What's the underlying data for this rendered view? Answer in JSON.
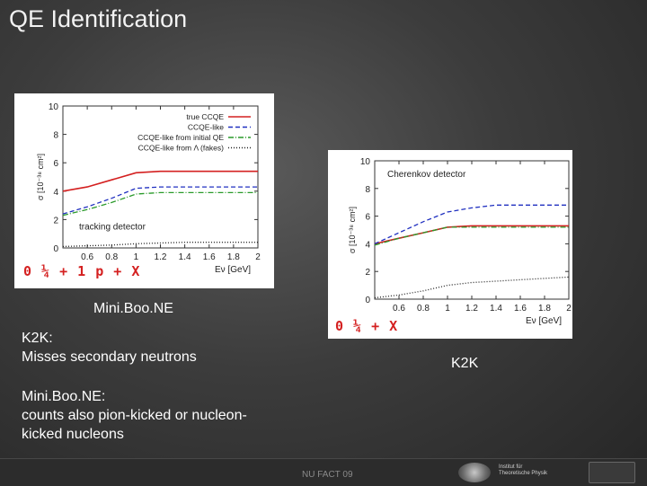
{
  "slide": {
    "title": "QE Identification",
    "label_miniboone": "Mini.Boo.NE",
    "label_k2k": "K2K",
    "text_k2k_header": "K2K:",
    "text_k2k_body": "Misses secondary neutrons",
    "text_mb_header": "Mini.Boo.NE:",
    "text_mb_line1": "counts also pion-kicked  or nucleon-",
    "text_mb_line2": "kicked nucleons",
    "footer": "NU FACT 09",
    "logo_text_line1": "Institut für",
    "logo_text_line2": "Theoretische Physik"
  },
  "left_plot": {
    "overlay": "0 ¼ + 1 p + X",
    "annotation": "tracking detector",
    "ylabel": "σ [10⁻³⁸ cm²]",
    "xlabel": "Eν [GeV]",
    "yticks": [
      "0",
      "2",
      "4",
      "6",
      "8",
      "10"
    ],
    "xticks": [
      "0.6",
      "0.8",
      "1",
      "1.2",
      "1.4",
      "1.6",
      "1.8",
      "2"
    ],
    "legend": [
      "true CCQE",
      "CCQE-like",
      "CCQE-like from initial QE",
      "CCQE-like from Λ (fakes)"
    ]
  },
  "right_plot": {
    "overlay": "0 ¼ + X",
    "annotation": "Cherenkov detector",
    "ylabel": "σ [10⁻³⁸ cm²]",
    "xlabel": "Eν [GeV]",
    "yticks": [
      "0",
      "2",
      "4",
      "6",
      "8",
      "10"
    ],
    "xticks": [
      "0.6",
      "0.8",
      "1",
      "1.2",
      "1.4",
      "1.6",
      "1.8",
      "2"
    ]
  },
  "chart_data": [
    {
      "type": "line",
      "xlim": [
        0.4,
        2.0
      ],
      "ylim": [
        0,
        10
      ],
      "series": [
        {
          "name": "true CCQE",
          "color": "#d42020",
          "style": "solid",
          "x": [
            0.4,
            0.6,
            0.8,
            1.0,
            1.2,
            1.4,
            1.6,
            1.8,
            2.0
          ],
          "y": [
            4.0,
            4.3,
            4.8,
            5.3,
            5.4,
            5.4,
            5.4,
            5.4,
            5.4
          ]
        },
        {
          "name": "CCQE-like",
          "color": "#2030c0",
          "style": "dashed",
          "x": [
            0.4,
            0.6,
            0.8,
            1.0,
            1.2,
            1.4,
            1.6,
            1.8,
            2.0
          ],
          "y": [
            2.4,
            2.9,
            3.5,
            4.2,
            4.3,
            4.3,
            4.3,
            4.3,
            4.3
          ]
        },
        {
          "name": "CCQE-like from initial QE",
          "color": "#2a9a2a",
          "style": "dashdot",
          "x": [
            0.4,
            0.6,
            0.8,
            1.0,
            1.2,
            1.4,
            1.6,
            1.8,
            2.0
          ],
          "y": [
            2.3,
            2.7,
            3.2,
            3.8,
            3.9,
            3.9,
            3.9,
            3.9,
            3.9
          ]
        },
        {
          "name": "CCQE-like from Λ (fakes)",
          "color": "#222222",
          "style": "dotted",
          "x": [
            0.4,
            0.6,
            0.8,
            1.0,
            1.2,
            1.4,
            1.6,
            1.8,
            2.0
          ],
          "y": [
            0.1,
            0.15,
            0.2,
            0.3,
            0.35,
            0.4,
            0.4,
            0.4,
            0.4
          ]
        }
      ]
    },
    {
      "type": "line",
      "xlim": [
        0.4,
        2.0
      ],
      "ylim": [
        0,
        10
      ],
      "series": [
        {
          "color": "#d42020",
          "style": "solid",
          "x": [
            0.4,
            0.6,
            0.8,
            1.0,
            1.2,
            1.4,
            1.6,
            1.8,
            2.0
          ],
          "y": [
            4.0,
            4.4,
            4.8,
            5.2,
            5.3,
            5.3,
            5.3,
            5.3,
            5.3
          ]
        },
        {
          "color": "#2030c0",
          "style": "dashed",
          "x": [
            0.4,
            0.6,
            0.8,
            1.0,
            1.2,
            1.4,
            1.6,
            1.8,
            2.0
          ],
          "y": [
            4.0,
            4.8,
            5.6,
            6.3,
            6.6,
            6.8,
            6.8,
            6.8,
            6.8
          ]
        },
        {
          "color": "#2a9a2a",
          "style": "dashdot",
          "x": [
            0.4,
            0.6,
            0.8,
            1.0,
            1.2,
            1.4,
            1.6,
            1.8,
            2.0
          ],
          "y": [
            3.9,
            4.4,
            4.8,
            5.2,
            5.2,
            5.2,
            5.2,
            5.2,
            5.2
          ]
        },
        {
          "color": "#222222",
          "style": "dotted",
          "x": [
            0.4,
            0.6,
            0.8,
            1.0,
            1.2,
            1.4,
            1.6,
            1.8,
            2.0
          ],
          "y": [
            0.1,
            0.3,
            0.6,
            1.0,
            1.2,
            1.3,
            1.4,
            1.5,
            1.6
          ]
        }
      ]
    }
  ]
}
